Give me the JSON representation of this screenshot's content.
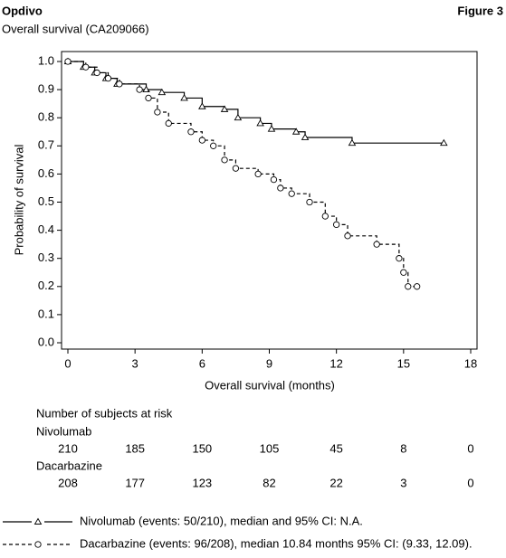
{
  "header": {
    "brand": "Opdivo",
    "figure": "Figure 3"
  },
  "chart_data": {
    "type": "step",
    "title": "Overall survival (CA209066)",
    "x_label": "Overall survival (months)",
    "y_label": "Probability of survival",
    "xlim": [
      0,
      18
    ],
    "xticks": [
      0,
      3,
      6,
      9,
      12,
      15,
      18
    ],
    "ylim": [
      0,
      1
    ],
    "yticks": [
      {
        "value": 0,
        "label": "0.0"
      },
      0.1,
      0.2,
      0.3,
      0.4,
      0.5,
      0.6,
      0.7,
      0.8,
      0.9,
      {
        "value": 1,
        "label": "1.0"
      }
    ],
    "series": [
      {
        "name": "Nivolumab (events: 50/210), median and 95% CI: N.A.",
        "color": "#000000",
        "line_style": "solid",
        "marker": "triangle",
        "x": [
          0,
          0.7,
          1.2,
          1.7,
          2.2,
          3.5,
          4.2,
          5.2,
          6.0,
          7.0,
          7.6,
          8.6,
          9.1,
          10.2,
          10.6,
          12.7,
          16.8
        ],
        "values": [
          1.0,
          0.98,
          0.96,
          0.94,
          0.92,
          0.9,
          0.89,
          0.87,
          0.84,
          0.83,
          0.8,
          0.78,
          0.76,
          0.75,
          0.73,
          0.71,
          0.71
        ]
      },
      {
        "name": "Dacarbazine (events: 96/208), median 10.84 months 95% CI: (9.33, 12.09).",
        "color": "#000000",
        "line_style": "dashed",
        "marker": "circle",
        "x": [
          0,
          0.8,
          1.3,
          1.8,
          2.3,
          3.2,
          3.6,
          4.0,
          4.5,
          5.5,
          6.0,
          6.5,
          7.0,
          7.5,
          8.5,
          9.2,
          9.5,
          10.0,
          10.8,
          11.5,
          12.0,
          12.5,
          13.8,
          14.8,
          15.0,
          15.2,
          15.6
        ],
        "values": [
          1.0,
          0.98,
          0.96,
          0.94,
          0.92,
          0.9,
          0.87,
          0.82,
          0.78,
          0.75,
          0.72,
          0.7,
          0.65,
          0.62,
          0.6,
          0.58,
          0.55,
          0.53,
          0.5,
          0.45,
          0.42,
          0.38,
          0.35,
          0.3,
          0.25,
          0.2,
          0.2
        ]
      }
    ],
    "risk_table": {
      "title": "Number of subjects at risk",
      "rows": [
        {
          "name": "Nivolumab",
          "values": [
            210,
            185,
            150,
            105,
            45,
            8,
            0
          ]
        },
        {
          "name": "Dacarbazine",
          "values": [
            208,
            177,
            123,
            82,
            22,
            3,
            0
          ]
        }
      ]
    }
  }
}
